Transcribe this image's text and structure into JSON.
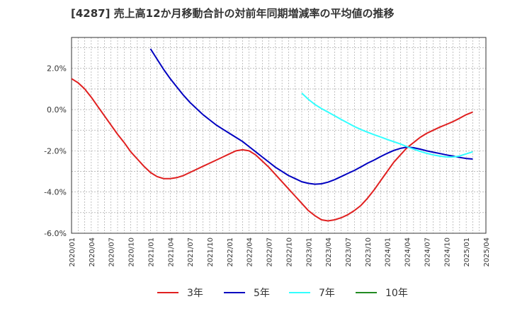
{
  "chart_data": {
    "type": "line",
    "title": "[4287]  売上高12か月移動合計の対前年同期増減率の平均値の推移",
    "xlabel": "",
    "ylabel": "",
    "ylim": [
      -6,
      3.5
    ],
    "y_ticks": [
      2,
      0,
      -2,
      -4,
      -6
    ],
    "y_tick_labels": [
      "2.0%",
      "0.0%",
      "-2.0%",
      "-4.0%",
      "-6.0%"
    ],
    "x_range": [
      "2020-01",
      "2025-04"
    ],
    "x_tick_labels": [
      "2020/01",
      "2020/04",
      "2020/07",
      "2020/10",
      "2021/01",
      "2021/04",
      "2021/07",
      "2021/10",
      "2022/01",
      "2022/04",
      "2022/07",
      "2022/10",
      "2023/01",
      "2023/04",
      "2023/07",
      "2023/10",
      "2024/01",
      "2024/04",
      "2024/07",
      "2024/10",
      "2025/01",
      "2025/04"
    ],
    "grid": true,
    "legend_position": "bottom",
    "series": [
      {
        "name": "3年",
        "color": "#e02020",
        "points": [
          [
            "2020-01",
            1.5
          ],
          [
            "2020-02",
            1.3
          ],
          [
            "2020-03",
            1.0
          ],
          [
            "2020-04",
            0.6
          ],
          [
            "2020-05",
            0.15
          ],
          [
            "2020-06",
            -0.3
          ],
          [
            "2020-07",
            -0.75
          ],
          [
            "2020-08",
            -1.2
          ],
          [
            "2020-09",
            -1.6
          ],
          [
            "2020-10",
            -2.05
          ],
          [
            "2020-11",
            -2.4
          ],
          [
            "2020-12",
            -2.75
          ],
          [
            "2021-01",
            -3.05
          ],
          [
            "2021-02",
            -3.25
          ],
          [
            "2021-03",
            -3.35
          ],
          [
            "2021-04",
            -3.35
          ],
          [
            "2021-05",
            -3.3
          ],
          [
            "2021-06",
            -3.2
          ],
          [
            "2021-07",
            -3.05
          ],
          [
            "2021-08",
            -2.9
          ],
          [
            "2021-09",
            -2.75
          ],
          [
            "2021-10",
            -2.6
          ],
          [
            "2021-11",
            -2.45
          ],
          [
            "2021-12",
            -2.3
          ],
          [
            "2022-01",
            -2.15
          ],
          [
            "2022-02",
            -2.0
          ],
          [
            "2022-03",
            -1.95
          ],
          [
            "2022-04",
            -2.0
          ],
          [
            "2022-05",
            -2.2
          ],
          [
            "2022-06",
            -2.5
          ],
          [
            "2022-07",
            -2.8
          ],
          [
            "2022-08",
            -3.15
          ],
          [
            "2022-09",
            -3.5
          ],
          [
            "2022-10",
            -3.85
          ],
          [
            "2022-11",
            -4.2
          ],
          [
            "2022-12",
            -4.55
          ],
          [
            "2023-01",
            -4.9
          ],
          [
            "2023-02",
            -5.15
          ],
          [
            "2023-03",
            -5.35
          ],
          [
            "2023-04",
            -5.4
          ],
          [
            "2023-05",
            -5.35
          ],
          [
            "2023-06",
            -5.25
          ],
          [
            "2023-07",
            -5.1
          ],
          [
            "2023-08",
            -4.9
          ],
          [
            "2023-09",
            -4.65
          ],
          [
            "2023-10",
            -4.3
          ],
          [
            "2023-11",
            -3.9
          ],
          [
            "2023-12",
            -3.45
          ],
          [
            "2024-01",
            -3.0
          ],
          [
            "2024-02",
            -2.55
          ],
          [
            "2024-03",
            -2.2
          ],
          [
            "2024-04",
            -1.85
          ],
          [
            "2024-05",
            -1.6
          ],
          [
            "2024-06",
            -1.35
          ],
          [
            "2024-07",
            -1.15
          ],
          [
            "2024-08",
            -1.0
          ],
          [
            "2024-09",
            -0.85
          ],
          [
            "2024-10",
            -0.72
          ],
          [
            "2024-11",
            -0.58
          ],
          [
            "2024-12",
            -0.42
          ],
          [
            "2025-01",
            -0.25
          ],
          [
            "2025-02",
            -0.12
          ]
        ]
      },
      {
        "name": "5年",
        "color": "#0000c0",
        "points": [
          [
            "2021-01",
            2.95
          ],
          [
            "2021-02",
            2.45
          ],
          [
            "2021-03",
            1.95
          ],
          [
            "2021-04",
            1.5
          ],
          [
            "2021-05",
            1.1
          ],
          [
            "2021-06",
            0.7
          ],
          [
            "2021-07",
            0.35
          ],
          [
            "2021-08",
            0.05
          ],
          [
            "2021-09",
            -0.25
          ],
          [
            "2021-10",
            -0.5
          ],
          [
            "2021-11",
            -0.75
          ],
          [
            "2021-12",
            -0.95
          ],
          [
            "2022-01",
            -1.15
          ],
          [
            "2022-02",
            -1.35
          ],
          [
            "2022-03",
            -1.55
          ],
          [
            "2022-04",
            -1.8
          ],
          [
            "2022-05",
            -2.05
          ],
          [
            "2022-06",
            -2.3
          ],
          [
            "2022-07",
            -2.55
          ],
          [
            "2022-08",
            -2.8
          ],
          [
            "2022-09",
            -3.0
          ],
          [
            "2022-10",
            -3.2
          ],
          [
            "2022-11",
            -3.35
          ],
          [
            "2022-12",
            -3.5
          ],
          [
            "2023-01",
            -3.58
          ],
          [
            "2023-02",
            -3.62
          ],
          [
            "2023-03",
            -3.6
          ],
          [
            "2023-04",
            -3.52
          ],
          [
            "2023-05",
            -3.4
          ],
          [
            "2023-06",
            -3.25
          ],
          [
            "2023-07",
            -3.1
          ],
          [
            "2023-08",
            -2.95
          ],
          [
            "2023-09",
            -2.78
          ],
          [
            "2023-10",
            -2.6
          ],
          [
            "2023-11",
            -2.45
          ],
          [
            "2023-12",
            -2.28
          ],
          [
            "2024-01",
            -2.12
          ],
          [
            "2024-02",
            -1.98
          ],
          [
            "2024-03",
            -1.88
          ],
          [
            "2024-04",
            -1.82
          ],
          [
            "2024-05",
            -1.85
          ],
          [
            "2024-06",
            -1.92
          ],
          [
            "2024-07",
            -2.0
          ],
          [
            "2024-08",
            -2.07
          ],
          [
            "2024-09",
            -2.13
          ],
          [
            "2024-10",
            -2.2
          ],
          [
            "2024-11",
            -2.26
          ],
          [
            "2024-12",
            -2.32
          ],
          [
            "2025-01",
            -2.37
          ],
          [
            "2025-02",
            -2.4
          ]
        ]
      },
      {
        "name": "7年",
        "color": "#33ffff",
        "points": [
          [
            "2022-12",
            0.8
          ],
          [
            "2023-01",
            0.5
          ],
          [
            "2023-02",
            0.25
          ],
          [
            "2023-03",
            0.05
          ],
          [
            "2023-04",
            -0.12
          ],
          [
            "2023-05",
            -0.3
          ],
          [
            "2023-06",
            -0.48
          ],
          [
            "2023-07",
            -0.65
          ],
          [
            "2023-08",
            -0.82
          ],
          [
            "2023-09",
            -0.97
          ],
          [
            "2023-10",
            -1.1
          ],
          [
            "2023-11",
            -1.22
          ],
          [
            "2023-12",
            -1.33
          ],
          [
            "2024-01",
            -1.45
          ],
          [
            "2024-02",
            -1.56
          ],
          [
            "2024-03",
            -1.67
          ],
          [
            "2024-04",
            -1.8
          ],
          [
            "2024-05",
            -1.92
          ],
          [
            "2024-06",
            -2.03
          ],
          [
            "2024-07",
            -2.12
          ],
          [
            "2024-08",
            -2.2
          ],
          [
            "2024-09",
            -2.26
          ],
          [
            "2024-10",
            -2.3
          ],
          [
            "2024-11",
            -2.3
          ],
          [
            "2024-12",
            -2.25
          ],
          [
            "2025-01",
            -2.15
          ],
          [
            "2025-02",
            -2.05
          ]
        ]
      },
      {
        "name": "10年",
        "color": "#228b22",
        "points": []
      }
    ]
  }
}
